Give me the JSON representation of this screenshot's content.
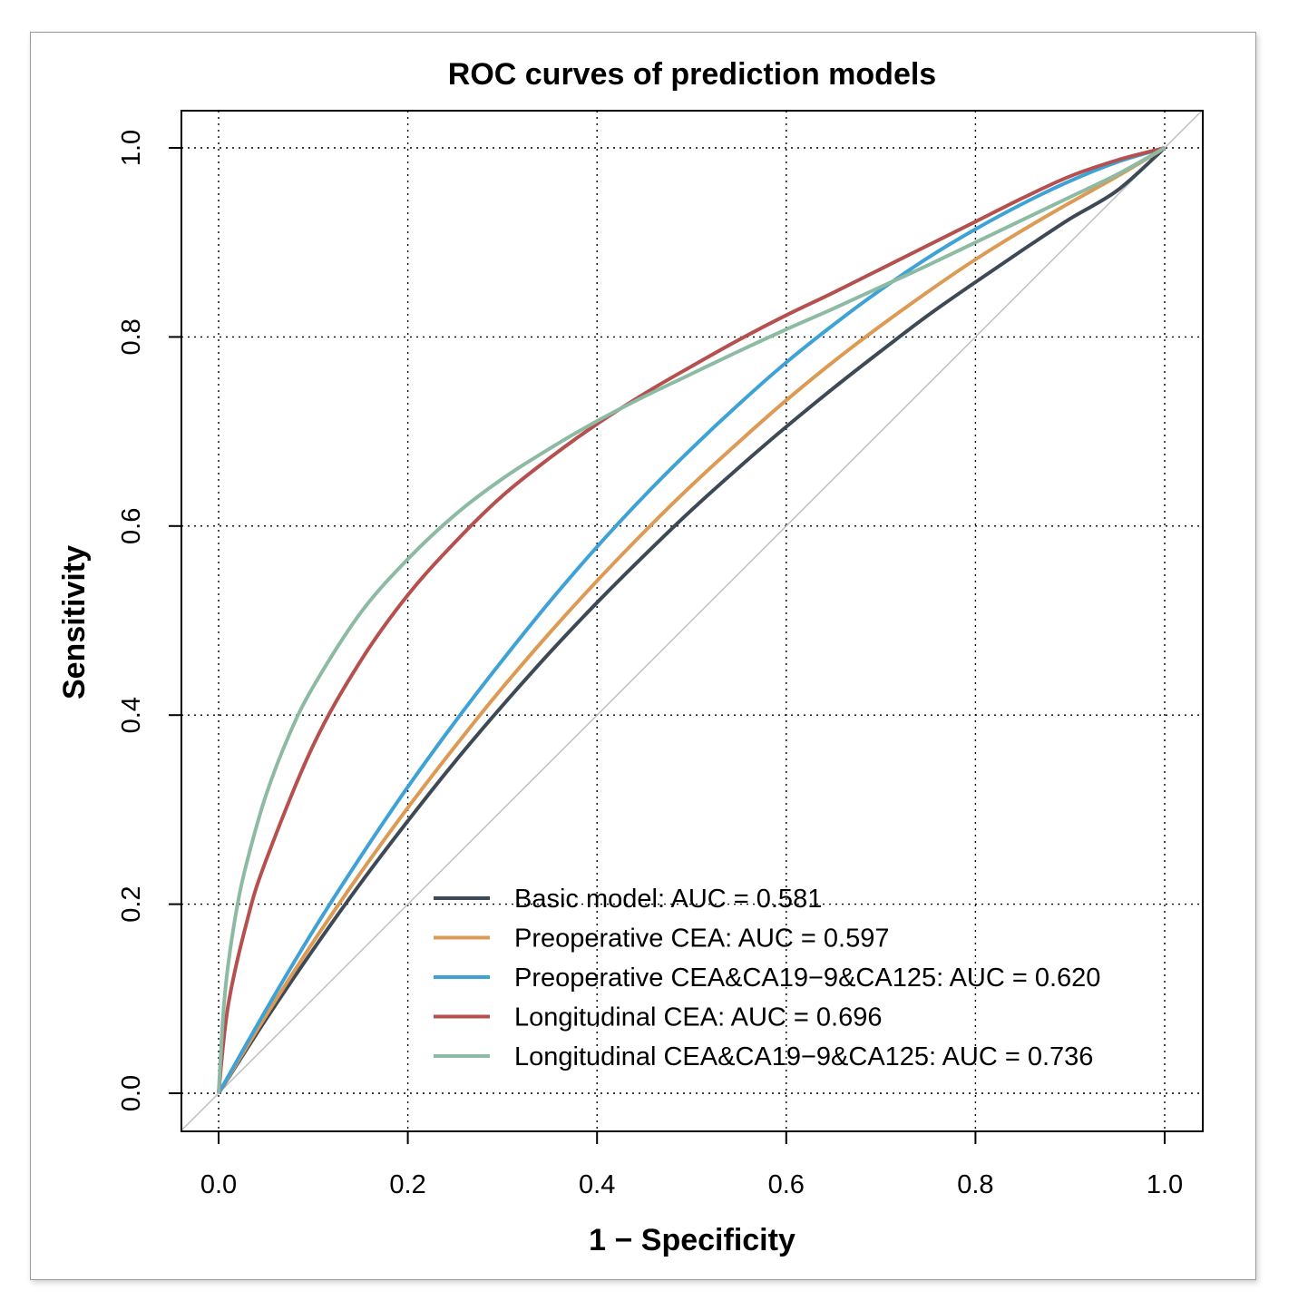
{
  "chart_data": {
    "type": "line",
    "title": "ROC curves of prediction models",
    "xlabel": "1 − Specificity",
    "ylabel": "Sensitivity",
    "xlim": [
      0,
      1
    ],
    "ylim": [
      0,
      1
    ],
    "x_ticks": [
      "0.0",
      "0.2",
      "0.4",
      "0.6",
      "0.8",
      "1.0"
    ],
    "y_ticks": [
      "0.0",
      "0.2",
      "0.4",
      "0.6",
      "0.8",
      "1.0"
    ],
    "grid": "dotted",
    "legend_position": "bottom-right",
    "reference_line": {
      "from": [
        0,
        0
      ],
      "to": [
        1,
        1
      ],
      "color": "#c0c0c0"
    },
    "series": [
      {
        "name": "Basic model: AUC = 0.581",
        "color": "#3d4a56",
        "x": [
          0,
          0.05,
          0.1,
          0.15,
          0.2,
          0.25,
          0.3,
          0.35,
          0.4,
          0.45,
          0.5,
          0.55,
          0.6,
          0.65,
          0.7,
          0.75,
          0.8,
          0.85,
          0.9,
          0.95,
          1.0
        ],
        "y": [
          0,
          0.078,
          0.152,
          0.222,
          0.288,
          0.351,
          0.41,
          0.466,
          0.519,
          0.569,
          0.617,
          0.662,
          0.705,
          0.746,
          0.785,
          0.823,
          0.858,
          0.892,
          0.925,
          0.955,
          1.0
        ]
      },
      {
        "name": "Preoperative CEA: AUC = 0.597",
        "color": "#dc9a54",
        "x": [
          0,
          0.05,
          0.1,
          0.15,
          0.2,
          0.25,
          0.3,
          0.35,
          0.4,
          0.45,
          0.5,
          0.55,
          0.6,
          0.65,
          0.7,
          0.75,
          0.8,
          0.85,
          0.9,
          0.95,
          1.0
        ],
        "y": [
          0,
          0.082,
          0.16,
          0.233,
          0.302,
          0.367,
          0.429,
          0.487,
          0.542,
          0.594,
          0.643,
          0.689,
          0.733,
          0.774,
          0.812,
          0.848,
          0.882,
          0.913,
          0.942,
          0.97,
          1.0
        ]
      },
      {
        "name": "Preoperative CEA&CA19−9&CA125: AUC = 0.620",
        "color": "#3ea2d6",
        "x": [
          0,
          0.05,
          0.1,
          0.15,
          0.2,
          0.25,
          0.3,
          0.35,
          0.4,
          0.45,
          0.5,
          0.55,
          0.6,
          0.65,
          0.7,
          0.75,
          0.8,
          0.85,
          0.9,
          0.95,
          1.0
        ],
        "y": [
          0,
          0.088,
          0.172,
          0.25,
          0.324,
          0.393,
          0.458,
          0.52,
          0.578,
          0.632,
          0.682,
          0.729,
          0.773,
          0.813,
          0.85,
          0.884,
          0.914,
          0.941,
          0.965,
          0.985,
          1.0
        ]
      },
      {
        "name": "Longitudinal CEA: AUC = 0.696",
        "color": "#b5504e",
        "x": [
          0,
          0.01,
          0.03,
          0.05,
          0.1,
          0.15,
          0.2,
          0.25,
          0.3,
          0.35,
          0.4,
          0.45,
          0.5,
          0.55,
          0.6,
          0.65,
          0.7,
          0.75,
          0.8,
          0.85,
          0.9,
          0.95,
          1.0
        ],
        "y": [
          0,
          0.092,
          0.182,
          0.246,
          0.368,
          0.457,
          0.527,
          0.583,
          0.632,
          0.672,
          0.708,
          0.74,
          0.769,
          0.797,
          0.823,
          0.847,
          0.872,
          0.897,
          0.922,
          0.947,
          0.97,
          0.987,
          1.0
        ]
      },
      {
        "name": "Longitudinal CEA&CA19−9&CA125: AUC = 0.736",
        "color": "#8cbaa3",
        "x": [
          0,
          0.005,
          0.01,
          0.02,
          0.03,
          0.05,
          0.075,
          0.1,
          0.15,
          0.2,
          0.25,
          0.3,
          0.35,
          0.4,
          0.45,
          0.5,
          0.55,
          0.6,
          0.65,
          0.7,
          0.75,
          0.8,
          0.85,
          0.9,
          0.95,
          1.0
        ],
        "y": [
          0,
          0.085,
          0.135,
          0.2,
          0.245,
          0.315,
          0.38,
          0.43,
          0.508,
          0.565,
          0.612,
          0.65,
          0.682,
          0.711,
          0.737,
          0.761,
          0.785,
          0.808,
          0.83,
          0.853,
          0.876,
          0.9,
          0.924,
          0.948,
          0.972,
          1.0
        ]
      }
    ]
  }
}
